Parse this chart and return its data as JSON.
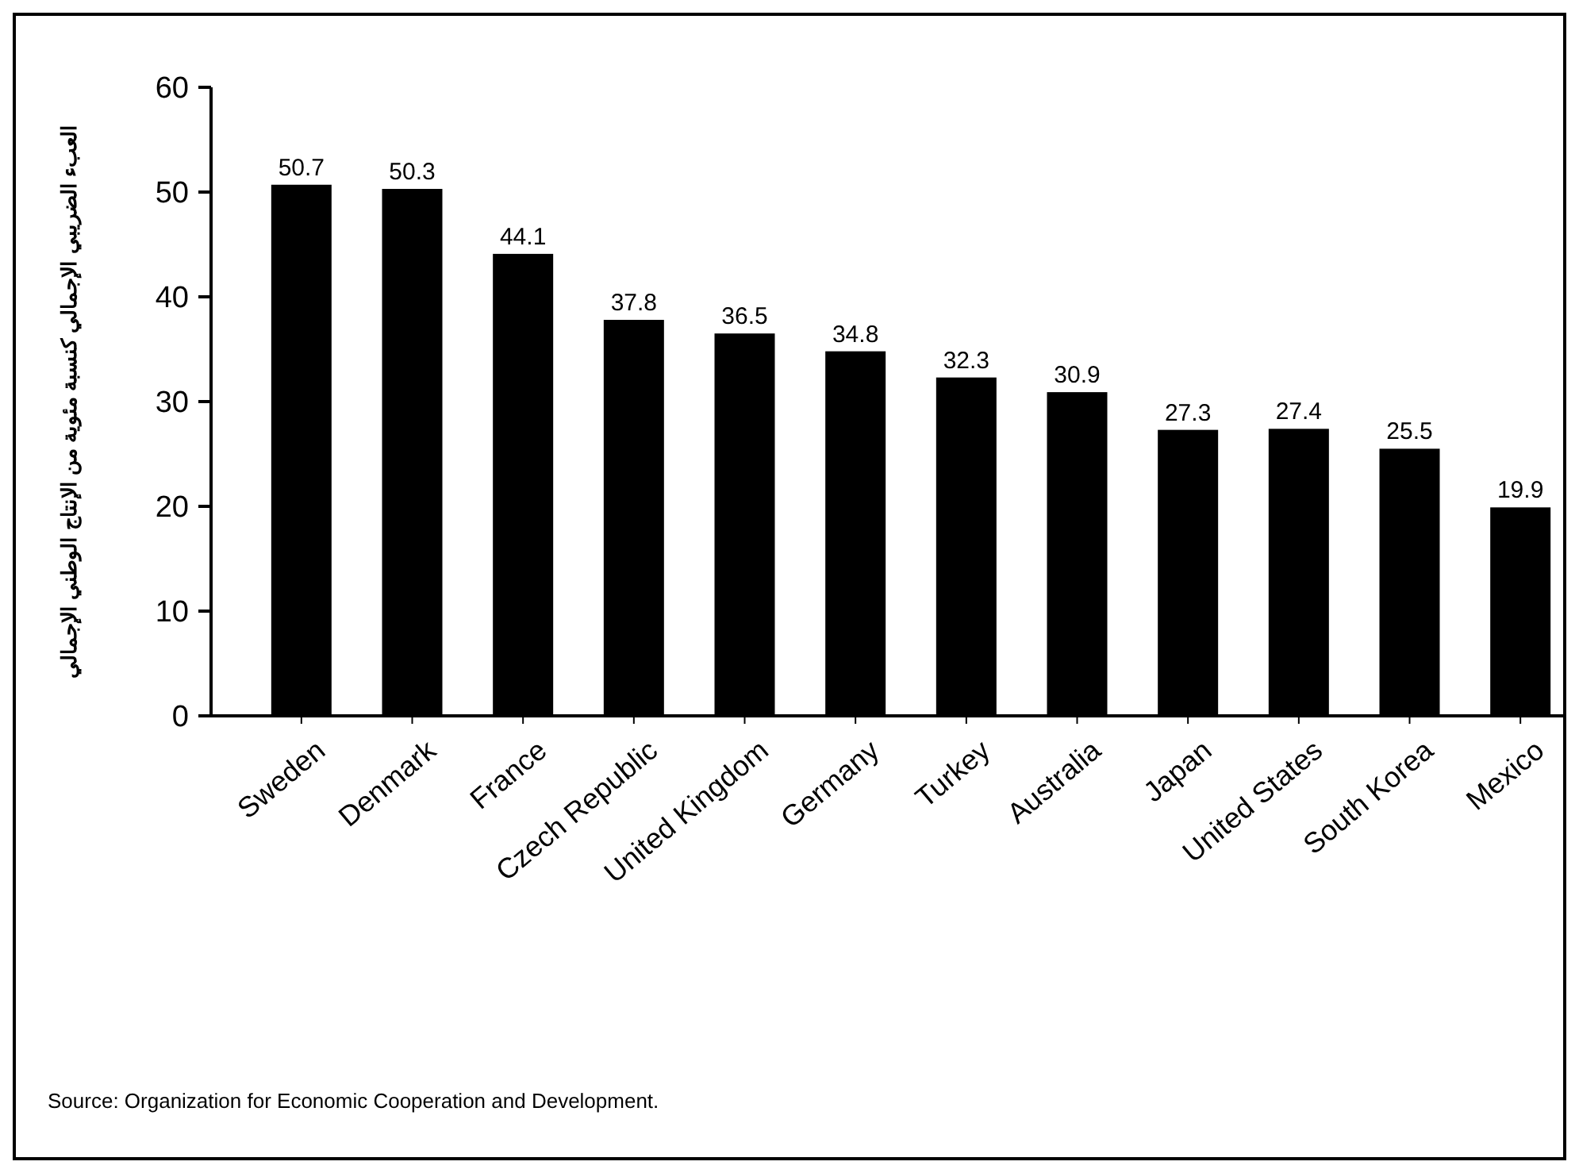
{
  "chart_data": {
    "type": "bar",
    "ylabel": "العبء الضريبي الإجمالي كنسبة مئوية من الإنتاج الوطني الإجمالي",
    "categories": [
      "Sweden",
      "Denmark",
      "France",
      "Czech Republic",
      "United Kingdom",
      "Germany",
      "Turkey",
      "Australia",
      "Japan",
      "United States",
      "South Korea",
      "Mexico"
    ],
    "values": [
      50.7,
      50.3,
      44.1,
      37.8,
      36.5,
      34.8,
      32.3,
      30.9,
      27.3,
      27.4,
      25.5,
      19.9
    ],
    "color": "#000000",
    "ylim": [
      0,
      60
    ],
    "yticks": [
      0,
      10,
      20,
      30,
      40,
      50,
      60
    ],
    "data_labels": true,
    "grid": false,
    "annotations": [
      "Source: Organization for Economic Cooperation and Development."
    ]
  }
}
